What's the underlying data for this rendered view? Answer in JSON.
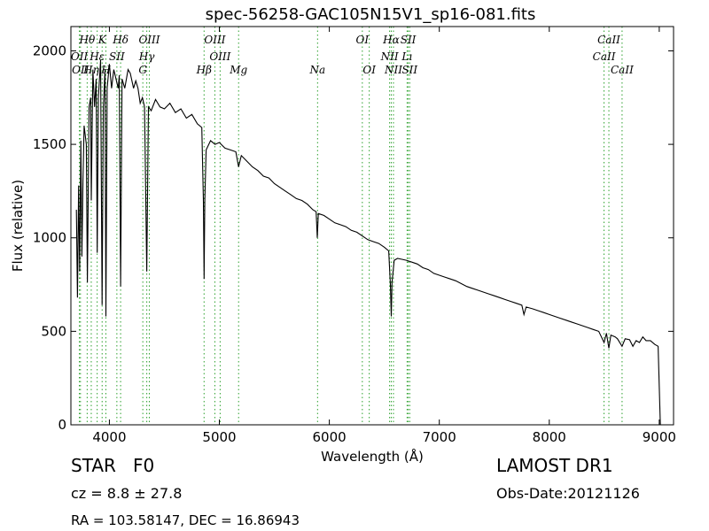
{
  "chart_data": {
    "type": "line",
    "title": "spec-56258-GAC105N15V1_sp16-081.fits",
    "xlabel": "Wavelength (Å)",
    "ylabel": "Flux (relative)",
    "xlim": [
      3650,
      9130
    ],
    "ylim": [
      0,
      2130
    ],
    "xticks": [
      4000,
      5000,
      6000,
      7000,
      8000,
      9000
    ],
    "yticks": [
      0,
      500,
      1000,
      1500,
      2000
    ],
    "grid": false,
    "line_color": "#000000",
    "marker_color": "#2ca02c",
    "series": [
      {
        "points": [
          [
            3700,
            1150
          ],
          [
            3710,
            680
          ],
          [
            3720,
            1280
          ],
          [
            3730,
            820
          ],
          [
            3740,
            1520
          ],
          [
            3750,
            900
          ],
          [
            3760,
            1300
          ],
          [
            3770,
            1600
          ],
          [
            3790,
            1500
          ],
          [
            3800,
            760
          ],
          [
            3815,
            1700
          ],
          [
            3830,
            1750
          ],
          [
            3835,
            1200
          ],
          [
            3850,
            1900
          ],
          [
            3865,
            1700
          ],
          [
            3880,
            1850
          ],
          [
            3889,
            920
          ],
          [
            3900,
            1750
          ],
          [
            3920,
            1950
          ],
          [
            3934,
            640
          ],
          [
            3945,
            1700
          ],
          [
            3960,
            1900
          ],
          [
            3968,
            580
          ],
          [
            3980,
            1800
          ],
          [
            4000,
            1930
          ],
          [
            4020,
            1800
          ],
          [
            4040,
            1900
          ],
          [
            4060,
            1850
          ],
          [
            4080,
            1800
          ],
          [
            4090,
            1870
          ],
          [
            4102,
            740
          ],
          [
            4115,
            1850
          ],
          [
            4140,
            1800
          ],
          [
            4170,
            1900
          ],
          [
            4190,
            1880
          ],
          [
            4220,
            1800
          ],
          [
            4240,
            1840
          ],
          [
            4260,
            1800
          ],
          [
            4280,
            1720
          ],
          [
            4300,
            1750
          ],
          [
            4320,
            1700
          ],
          [
            4340,
            820
          ],
          [
            4355,
            1700
          ],
          [
            4380,
            1680
          ],
          [
            4420,
            1740
          ],
          [
            4460,
            1700
          ],
          [
            4500,
            1690
          ],
          [
            4550,
            1720
          ],
          [
            4600,
            1670
          ],
          [
            4650,
            1690
          ],
          [
            4700,
            1640
          ],
          [
            4750,
            1660
          ],
          [
            4800,
            1610
          ],
          [
            4840,
            1590
          ],
          [
            4855,
            1200
          ],
          [
            4861,
            780
          ],
          [
            4868,
            1200
          ],
          [
            4880,
            1470
          ],
          [
            4920,
            1520
          ],
          [
            4960,
            1500
          ],
          [
            5000,
            1510
          ],
          [
            5050,
            1480
          ],
          [
            5100,
            1470
          ],
          [
            5150,
            1460
          ],
          [
            5175,
            1380
          ],
          [
            5200,
            1440
          ],
          [
            5250,
            1410
          ],
          [
            5300,
            1380
          ],
          [
            5350,
            1360
          ],
          [
            5400,
            1330
          ],
          [
            5450,
            1320
          ],
          [
            5500,
            1290
          ],
          [
            5550,
            1270
          ],
          [
            5600,
            1250
          ],
          [
            5650,
            1230
          ],
          [
            5700,
            1210
          ],
          [
            5750,
            1200
          ],
          [
            5800,
            1180
          ],
          [
            5850,
            1150
          ],
          [
            5880,
            1140
          ],
          [
            5890,
            1000
          ],
          [
            5900,
            1130
          ],
          [
            5950,
            1120
          ],
          [
            6000,
            1100
          ],
          [
            6050,
            1080
          ],
          [
            6100,
            1070
          ],
          [
            6150,
            1060
          ],
          [
            6200,
            1040
          ],
          [
            6250,
            1030
          ],
          [
            6300,
            1010
          ],
          [
            6350,
            990
          ],
          [
            6400,
            980
          ],
          [
            6450,
            970
          ],
          [
            6500,
            950
          ],
          [
            6540,
            930
          ],
          [
            6555,
            750
          ],
          [
            6563,
            580
          ],
          [
            6570,
            760
          ],
          [
            6590,
            880
          ],
          [
            6620,
            890
          ],
          [
            6660,
            885
          ],
          [
            6700,
            880
          ],
          [
            6750,
            870
          ],
          [
            6800,
            860
          ],
          [
            6850,
            840
          ],
          [
            6900,
            830
          ],
          [
            6950,
            810
          ],
          [
            7000,
            800
          ],
          [
            7050,
            790
          ],
          [
            7100,
            780
          ],
          [
            7150,
            770
          ],
          [
            7200,
            755
          ],
          [
            7250,
            740
          ],
          [
            7300,
            730
          ],
          [
            7350,
            720
          ],
          [
            7400,
            710
          ],
          [
            7450,
            700
          ],
          [
            7500,
            690
          ],
          [
            7550,
            680
          ],
          [
            7600,
            670
          ],
          [
            7650,
            660
          ],
          [
            7700,
            650
          ],
          [
            7750,
            640
          ],
          [
            7770,
            590
          ],
          [
            7790,
            630
          ],
          [
            7850,
            620
          ],
          [
            7900,
            610
          ],
          [
            7950,
            600
          ],
          [
            8000,
            590
          ],
          [
            8050,
            580
          ],
          [
            8100,
            570
          ],
          [
            8150,
            560
          ],
          [
            8200,
            550
          ],
          [
            8250,
            540
          ],
          [
            8300,
            530
          ],
          [
            8350,
            520
          ],
          [
            8400,
            510
          ],
          [
            8450,
            500
          ],
          [
            8498,
            440
          ],
          [
            8520,
            490
          ],
          [
            8542,
            410
          ],
          [
            8560,
            480
          ],
          [
            8600,
            470
          ],
          [
            8620,
            460
          ],
          [
            8662,
            420
          ],
          [
            8690,
            460
          ],
          [
            8730,
            455
          ],
          [
            8760,
            420
          ],
          [
            8790,
            450
          ],
          [
            8820,
            440
          ],
          [
            8850,
            470
          ],
          [
            8880,
            450
          ],
          [
            8920,
            450
          ],
          [
            8960,
            430
          ],
          [
            8990,
            420
          ],
          [
            9000,
            200
          ],
          [
            9010,
            0
          ]
        ]
      }
    ],
    "line_markers": [
      {
        "label": "Hθ",
        "x": 3798,
        "row": 1
      },
      {
        "label": "K",
        "x": 3934,
        "row": 1
      },
      {
        "label": "Hδ",
        "x": 4102,
        "row": 1
      },
      {
        "label": "OIII",
        "x": 4363,
        "row": 1
      },
      {
        "label": "OIII",
        "x": 4959,
        "row": 1
      },
      {
        "label": "OI",
        "x": 6300,
        "row": 1
      },
      {
        "label": "Hα",
        "x": 6563,
        "row": 1
      },
      {
        "label": "SII",
        "x": 6717,
        "row": 1
      },
      {
        "label": "CaII",
        "x": 8542,
        "row": 1
      },
      {
        "label": "OII",
        "x": 3727,
        "row": 2
      },
      {
        "label": "Hε",
        "x": 3889,
        "row": 2
      },
      {
        "label": "SII",
        "x": 4068,
        "row": 2
      },
      {
        "label": "Hγ",
        "x": 4340,
        "row": 2
      },
      {
        "label": "OIII",
        "x": 5007,
        "row": 2
      },
      {
        "label": "NII",
        "x": 6548,
        "row": 2
      },
      {
        "label": "Lı",
        "x": 6707,
        "row": 2
      },
      {
        "label": "CaII",
        "x": 8498,
        "row": 2
      },
      {
        "label": "OII",
        "x": 3737,
        "row": 3
      },
      {
        "label": "Hη",
        "x": 3835,
        "row": 3
      },
      {
        "label": "H",
        "x": 3968,
        "row": 3
      },
      {
        "label": "G",
        "x": 4304,
        "row": 3
      },
      {
        "label": "Hβ",
        "x": 4861,
        "row": 3
      },
      {
        "label": "Mg",
        "x": 5175,
        "row": 3
      },
      {
        "label": "Na",
        "x": 5893,
        "row": 3
      },
      {
        "label": "OI",
        "x": 6363,
        "row": 3
      },
      {
        "label": "NII",
        "x": 6583,
        "row": 3
      },
      {
        "label": "SII",
        "x": 6731,
        "row": 3
      },
      {
        "label": "CaII",
        "x": 8662,
        "row": 3
      }
    ]
  },
  "info": {
    "object_class": "STAR   F0",
    "cz": "cz = 8.8 ± 27.8",
    "coords": "RA = 103.58147, DEC = 16.86943",
    "survey": "LAMOST DR1",
    "obs_date": "Obs-Date:20121126"
  }
}
